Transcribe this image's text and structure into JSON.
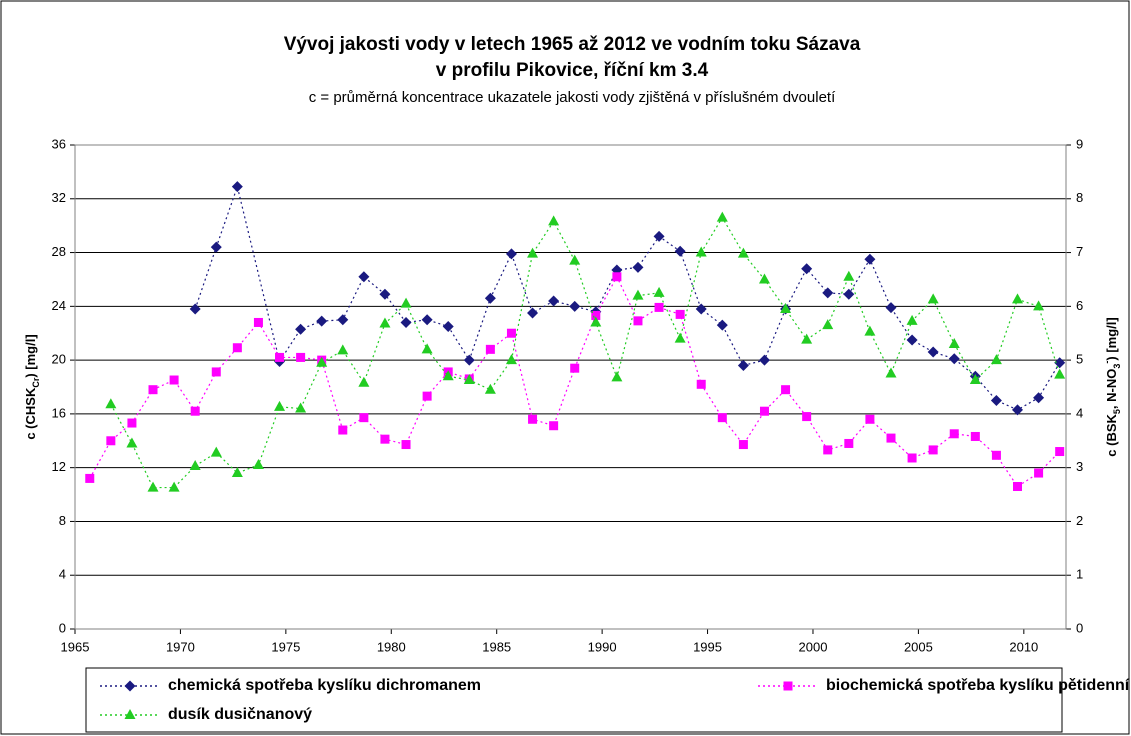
{
  "chart_data": {
    "type": "line",
    "title": [
      "Vývoj jakosti vody v letech 1965 až 2012 ve vodním toku Sázava",
      "v profilu Pikovice, říční km 3.4"
    ],
    "subtitle": "c = průměrná koncentrace ukazatele jakosti vody zjištěná v příslušném dvouletí",
    "y_label": [
      {
        "text": "c (CHSK"
      },
      {
        "text": "Cr",
        "sub": true
      },
      {
        "text": ") [mg/l]"
      }
    ],
    "y2_label": [
      {
        "text": "c (BSK"
      },
      {
        "text": "5",
        "sub": true
      },
      {
        "text": ", N-NO"
      },
      {
        "text": "3",
        "sub": true
      },
      {
        "text": "-",
        "sup": true
      },
      {
        "text": ") [mg/l]"
      }
    ],
    "xlim": [
      1965,
      2012
    ],
    "xticks": [
      1965,
      1970,
      1975,
      1980,
      1985,
      1990,
      1995,
      2000,
      2005,
      2010
    ],
    "ylim": [
      0,
      36
    ],
    "yticks": [
      0,
      4,
      8,
      12,
      16,
      20,
      24,
      28,
      32,
      36
    ],
    "y2lim": [
      0,
      9
    ],
    "y2ticks": [
      0,
      1,
      2,
      3,
      4,
      5,
      6,
      7,
      8,
      9
    ],
    "grid": true,
    "legend": "bottom",
    "series": [
      {
        "name": "chemická spotřeba kyslíku dichromanem",
        "color": "#1a1a80",
        "marker": "diamond",
        "x": [
          1970.7,
          1971.7,
          1972.7,
          1974.7,
          1975.7,
          1976.7,
          1977.7,
          1978.7,
          1979.7,
          1980.7,
          1981.7,
          1982.7,
          1983.7,
          1984.7,
          1985.7,
          1986.7,
          1987.7,
          1988.7,
          1989.7,
          1990.7,
          1991.7,
          1992.7,
          1993.7,
          1994.7,
          1995.7,
          1996.7,
          1997.7,
          1998.7,
          1999.7,
          2000.7,
          2001.7,
          2002.7,
          2003.7,
          2004.7,
          2005.7,
          2006.7,
          2007.7,
          2008.7,
          2009.7,
          2010.7,
          2011.7
        ],
        "values": [
          23.8,
          28.4,
          32.9,
          19.9,
          22.3,
          22.9,
          23.0,
          26.2,
          24.9,
          22.8,
          23.0,
          22.5,
          20.0,
          24.6,
          27.9,
          23.5,
          24.4,
          24.0,
          23.6,
          26.7,
          26.9,
          29.2,
          28.1,
          23.8,
          22.6,
          19.6,
          20.0,
          23.8,
          26.8,
          25.0,
          24.9,
          27.5,
          23.9,
          21.5,
          20.6,
          20.1,
          18.8,
          17.0,
          16.3,
          17.2,
          19.8
        ]
      },
      {
        "name": "biochemická spotřeba kyslíku pětidenní",
        "color": "#ff00ff",
        "marker": "square",
        "axis": "y2",
        "x": [
          1965.7,
          1966.7,
          1967.7,
          1968.7,
          1969.7,
          1970.7,
          1971.7,
          1972.7,
          1973.7,
          1974.7,
          1975.7,
          1976.7,
          1977.7,
          1978.7,
          1979.7,
          1980.7,
          1981.7,
          1982.7,
          1983.7,
          1984.7,
          1985.7,
          1986.7,
          1987.7,
          1988.7,
          1989.7,
          1990.7,
          1991.7,
          1992.7,
          1993.7,
          1994.7,
          1995.7,
          1996.7,
          1997.7,
          1998.7,
          1999.7,
          2000.7,
          2001.7,
          2002.7,
          2003.7,
          2004.7,
          2005.7,
          2006.7,
          2007.7,
          2008.7,
          2009.7,
          2010.7,
          2011.7
        ],
        "values": [
          2.8,
          3.5,
          3.83,
          4.45,
          4.63,
          4.05,
          4.78,
          5.23,
          5.7,
          5.05,
          5.05,
          5.0,
          3.7,
          3.93,
          3.53,
          3.43,
          4.33,
          4.78,
          4.65,
          5.2,
          5.5,
          3.9,
          3.78,
          4.85,
          5.83,
          6.55,
          5.73,
          5.98,
          5.85,
          4.55,
          3.93,
          3.43,
          4.05,
          4.45,
          3.95,
          3.33,
          3.45,
          3.9,
          3.55,
          3.18,
          3.33,
          3.63,
          3.58,
          3.23,
          2.65,
          2.9,
          3.3
        ]
      },
      {
        "name": "dusík dusičnanový",
        "color": "#22cc22",
        "marker": "triangle",
        "axis": "y2",
        "x": [
          1966.7,
          1967.7,
          1968.7,
          1969.7,
          1970.7,
          1971.7,
          1972.7,
          1973.7,
          1974.7,
          1975.7,
          1976.7,
          1977.7,
          1978.7,
          1979.7,
          1980.7,
          1981.7,
          1982.7,
          1983.7,
          1984.7,
          1985.7,
          1986.7,
          1987.7,
          1988.7,
          1989.7,
          1990.7,
          1991.7,
          1992.7,
          1993.7,
          1994.7,
          1995.7,
          1996.7,
          1997.7,
          1998.7,
          1999.7,
          2000.7,
          2001.7,
          2002.7,
          2003.7,
          2004.7,
          2005.7,
          2006.7,
          2007.7,
          2008.7,
          2009.7,
          2010.7,
          2011.7
        ],
        "values": [
          4.18,
          3.45,
          2.63,
          2.63,
          3.03,
          3.28,
          2.9,
          3.05,
          4.13,
          4.1,
          4.95,
          5.18,
          4.58,
          5.68,
          6.05,
          5.2,
          4.7,
          4.63,
          4.45,
          5.0,
          6.98,
          7.58,
          6.85,
          5.7,
          4.68,
          6.2,
          6.25,
          5.4,
          7.0,
          7.65,
          6.98,
          6.5,
          5.95,
          5.38,
          5.65,
          6.55,
          5.53,
          4.75,
          5.73,
          6.13,
          5.3,
          4.63,
          5.0,
          6.13,
          6.0,
          4.73
        ]
      }
    ]
  }
}
